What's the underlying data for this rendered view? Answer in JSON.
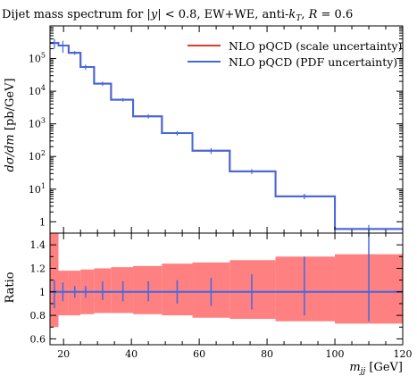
{
  "chart_data": [
    {
      "type": "line",
      "title": "Dijet mass spectrum for |y| < 0.8, EW+WE, anti-k_T, R = 0.6",
      "title_parts": {
        "prefix": "Dijet mass spectrum for |",
        "y_symbol": "y",
        "mid": "| < 0.8, EW+WE, anti-",
        "k_symbol": "k",
        "k_subscript": "T",
        "sep": ", ",
        "r_symbol": "R",
        "suffix": " = 0.6"
      },
      "ylabel": "dσ/dm [pb/GeV]",
      "ylabel_parts": {
        "math": "dσ/dm",
        "unit": " [pb/GeV]"
      },
      "yscale": "log",
      "ylim": [
        0.45,
        1000000
      ],
      "yticks": [
        {
          "value": 1,
          "label": "1"
        },
        {
          "value": 10,
          "base": "10",
          "exp": "1"
        },
        {
          "value": 100,
          "base": "10",
          "exp": "2"
        },
        {
          "value": 1000,
          "base": "10",
          "exp": "3"
        },
        {
          "value": 10000,
          "base": "10",
          "exp": "4"
        },
        {
          "value": 100000,
          "base": "10",
          "exp": "5"
        }
      ],
      "xlim": [
        16,
        120
      ],
      "bin_edges": [
        16,
        18.5,
        21.5,
        25,
        29,
        34,
        40.5,
        49,
        58,
        69,
        82.5,
        100,
        120
      ],
      "bin_centers": [
        17.3,
        19.8,
        23.3,
        26.5,
        31.5,
        37.5,
        45,
        53.5,
        63.5,
        75.5,
        91,
        110
      ],
      "series": [
        {
          "name": "NLO pQCD (scale uncertainty)",
          "color": "#e8382a",
          "values": [
            300000,
            250000,
            150000,
            55000,
            17000,
            5500,
            1700,
            520,
            150,
            35,
            6,
            0.6
          ]
        },
        {
          "name": "NLO pQCD (PDF uncertainty)",
          "color": "#4169e1",
          "values": [
            300000,
            250000,
            150000,
            55000,
            17000,
            5500,
            1700,
            520,
            150,
            35,
            6,
            0.6
          ],
          "err_low": [
            200000,
            150000,
            130000,
            45000,
            14500,
            4800,
            1450,
            440,
            120,
            29,
            4.9,
            0.5
          ],
          "err_high": [
            400000,
            350000,
            170000,
            65000,
            19500,
            6200,
            1950,
            600,
            180,
            41,
            7.2,
            0.8
          ]
        }
      ],
      "legend_position": "top-right"
    },
    {
      "type": "area",
      "ylabel": "Ratio",
      "xlabel": "m_jj [GeV]",
      "xlabel_parts": {
        "math": "m",
        "sub": "jj",
        "unit": " [GeV]"
      },
      "ylim": [
        0.55,
        1.5
      ],
      "yticks": [
        "0.6",
        "0.8",
        "1",
        "1.2",
        "1.4"
      ],
      "xticks": [
        "20",
        "40",
        "60",
        "80",
        "100",
        "120"
      ],
      "xlim": [
        16,
        120
      ],
      "bin_edges": [
        16,
        18.5,
        21.5,
        25,
        29,
        34,
        40.5,
        49,
        58,
        69,
        82.5,
        100,
        120
      ],
      "scale_band_low": [
        0.7,
        0.8,
        0.8,
        0.81,
        0.82,
        0.82,
        0.81,
        0.8,
        0.78,
        0.77,
        0.75,
        0.73
      ],
      "scale_band_high": [
        1.5,
        1.18,
        1.18,
        1.19,
        1.2,
        1.21,
        1.22,
        1.24,
        1.25,
        1.27,
        1.3,
        1.32
      ],
      "ratio_value": 1,
      "ratio_err": [
        {
          "x": 17.3,
          "low": 0.86,
          "high": 1.1
        },
        {
          "x": 19.8,
          "low": 0.92,
          "high": 1.08
        },
        {
          "x": 23.3,
          "low": 0.95,
          "high": 1.05
        },
        {
          "x": 26.5,
          "low": 0.95,
          "high": 1.05
        },
        {
          "x": 31.5,
          "low": 0.93,
          "high": 1.09
        },
        {
          "x": 37.5,
          "low": 0.92,
          "high": 1.09
        },
        {
          "x": 45,
          "low": 0.92,
          "high": 1.09
        },
        {
          "x": 53.5,
          "low": 0.9,
          "high": 1.1
        },
        {
          "x": 63.5,
          "low": 0.88,
          "high": 1.12
        },
        {
          "x": 75.5,
          "low": 0.85,
          "high": 1.15
        },
        {
          "x": 91,
          "low": 0.8,
          "high": 1.3
        },
        {
          "x": 110,
          "low": 0.75,
          "high": 1.5
        }
      ]
    }
  ]
}
